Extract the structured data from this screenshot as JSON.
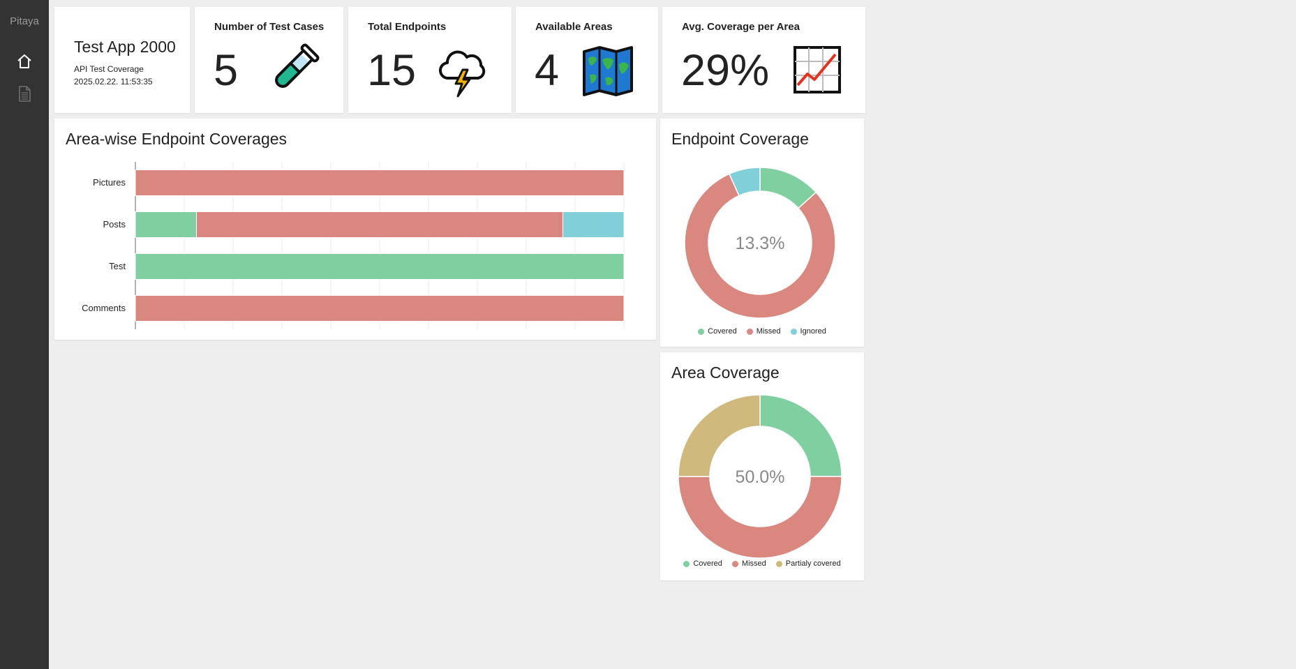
{
  "sidebar": {
    "brand": "Pitaya",
    "items": [
      {
        "name": "home-icon"
      },
      {
        "name": "document-icon"
      }
    ]
  },
  "app": {
    "title": "Test App 2000",
    "subtitle": "API Test Coverage",
    "timestamp": "2025.02.22. 11:53:35"
  },
  "stats": {
    "test_cases": {
      "label": "Number of Test Cases",
      "value": "5",
      "icon": "test-tube-icon"
    },
    "endpoints": {
      "label": "Total Endpoints",
      "value": "15",
      "icon": "lightning-cloud-icon"
    },
    "areas": {
      "label": "Available Areas",
      "value": "4",
      "icon": "map-icon"
    },
    "avg_coverage": {
      "label": "Avg. Coverage per Area",
      "value": "29%",
      "icon": "chart-increasing-icon"
    }
  },
  "colors": {
    "covered": "#7fcfa0",
    "missed": "#d9877f",
    "ignored": "#80cfd9",
    "partial": "#cfb97c"
  },
  "chart_data": [
    {
      "type": "bar",
      "orientation": "horizontal-stacked",
      "title": "Area-wise Endpoint Coverages",
      "categories": [
        "Pictures",
        "Posts",
        "Test",
        "Comments"
      ],
      "series": [
        {
          "name": "Covered",
          "values": [
            0,
            12.5,
            100,
            0
          ]
        },
        {
          "name": "Missed",
          "values": [
            100,
            75,
            0,
            100
          ]
        },
        {
          "name": "Ignored",
          "values": [
            0,
            12.5,
            0,
            0
          ]
        }
      ],
      "xlim": [
        0,
        100
      ],
      "grid": true
    },
    {
      "type": "pie",
      "style": "doughnut",
      "title": "Endpoint Coverage",
      "center_label": "13.3%",
      "labels": [
        "Covered",
        "Missed",
        "Ignored"
      ],
      "values": [
        2,
        12,
        1
      ],
      "legend": "bottom"
    },
    {
      "type": "pie",
      "style": "doughnut",
      "title": "Area Coverage",
      "center_label": "50.0%",
      "labels": [
        "Covered",
        "Missed",
        "Partialy covered"
      ],
      "values": [
        1,
        2,
        1
      ],
      "legend": "bottom"
    }
  ]
}
